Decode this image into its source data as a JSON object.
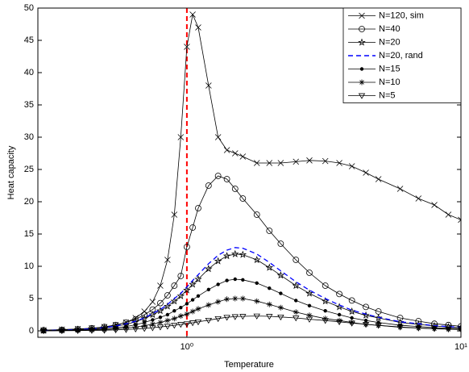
{
  "chart_data": {
    "type": "line",
    "x_label": "Temperature",
    "y_label": "Heat capacity",
    "x_scale": "log",
    "xlim": [
      0.286,
      10
    ],
    "ylim": [
      -1,
      50
    ],
    "xticks": [
      {
        "value": 1,
        "label": "10⁰"
      },
      {
        "value": 10,
        "label": "10¹"
      }
    ],
    "yticks": [
      0,
      5,
      10,
      15,
      20,
      25,
      30,
      35,
      40,
      45,
      50
    ],
    "legend": "upper right",
    "vline": {
      "x": 1,
      "color": "#ff0000"
    },
    "x": [
      0.3,
      0.35,
      0.4,
      0.45,
      0.5,
      0.55,
      0.6,
      0.65,
      0.7,
      0.75,
      0.8,
      0.85,
      0.9,
      0.95,
      1.0,
      1.05,
      1.1,
      1.2,
      1.3,
      1.4,
      1.5,
      1.6,
      1.8,
      2.0,
      2.2,
      2.5,
      2.8,
      3.2,
      3.6,
      4,
      4.5,
      5,
      6,
      7,
      8,
      9,
      10
    ],
    "series": [
      {
        "name": "N=120, sim",
        "color": "#000000",
        "marker": "x",
        "values": [
          0.1,
          0.2,
          0.3,
          0.4,
          0.6,
          0.9,
          1.3,
          2,
          3,
          4.5,
          7,
          11,
          18,
          30,
          44,
          49,
          47,
          38,
          30,
          28,
          27.5,
          27,
          26,
          26,
          26,
          26.2,
          26.4,
          26.3,
          26,
          25.5,
          24.5,
          23.5,
          22,
          20.5,
          19.5,
          18,
          17.2
        ]
      },
      {
        "name": "N=40",
        "color": "#000000",
        "marker": "o",
        "values": [
          0.1,
          0.15,
          0.25,
          0.4,
          0.6,
          0.9,
          1.3,
          1.8,
          2.5,
          3.3,
          4.3,
          5.5,
          7,
          8.5,
          13,
          16,
          19,
          22.5,
          24,
          23.5,
          22,
          20.5,
          18,
          15.5,
          13.5,
          11,
          9,
          7,
          5.7,
          4.7,
          3.7,
          3,
          2,
          1.5,
          1.1,
          0.9,
          0.7
        ]
      },
      {
        "name": "N=20",
        "color": "#000000",
        "marker": "star",
        "values": [
          0.05,
          0.1,
          0.2,
          0.3,
          0.45,
          0.7,
          1,
          1.4,
          1.9,
          2.5,
          3.1,
          3.8,
          4.6,
          5.4,
          6.3,
          7.2,
          8,
          9.6,
          10.8,
          11.6,
          11.9,
          11.8,
          11,
          9.8,
          8.6,
          7,
          5.8,
          4.6,
          3.7,
          3,
          2.4,
          2,
          1.3,
          1,
          0.75,
          0.6,
          0.5
        ]
      },
      {
        "name": "N=20, rand",
        "color": "#0000ff",
        "marker": "none",
        "dash": true,
        "values": [
          0.05,
          0.1,
          0.2,
          0.3,
          0.5,
          0.75,
          1.1,
          1.5,
          2,
          2.7,
          3.3,
          4.1,
          5,
          5.8,
          6.8,
          7.8,
          8.7,
          10.4,
          11.7,
          12.5,
          12.9,
          12.8,
          11.9,
          10.6,
          9.3,
          7.6,
          6.3,
          5,
          4,
          3.2,
          2.6,
          2.1,
          1.4,
          1.1,
          0.8,
          0.65,
          0.55
        ]
      },
      {
        "name": "N=15",
        "color": "#000000",
        "marker": "dot",
        "values": [
          0.03,
          0.07,
          0.13,
          0.2,
          0.3,
          0.47,
          0.67,
          0.94,
          1.3,
          1.7,
          2.1,
          2.5,
          3.1,
          3.6,
          4.2,
          4.8,
          5.4,
          6.4,
          7.2,
          7.8,
          8,
          7.9,
          7.4,
          6.6,
          5.8,
          4.7,
          3.9,
          3.1,
          2.5,
          2,
          1.6,
          1.3,
          0.87,
          0.67,
          0.5,
          0.4,
          0.34
        ]
      },
      {
        "name": "N=10",
        "color": "#000000",
        "marker": "asterisk",
        "values": [
          0.02,
          0.04,
          0.08,
          0.13,
          0.19,
          0.29,
          0.42,
          0.59,
          0.8,
          1.05,
          1.3,
          1.6,
          1.9,
          2.3,
          2.6,
          3,
          3.4,
          4,
          4.5,
          4.9,
          5,
          5,
          4.6,
          4.1,
          3.6,
          2.9,
          2.4,
          1.9,
          1.6,
          1.3,
          1,
          0.84,
          0.55,
          0.42,
          0.32,
          0.25,
          0.21
        ]
      },
      {
        "name": "N=5",
        "color": "#000000",
        "marker": "tri",
        "values": [
          0.01,
          0.02,
          0.04,
          0.06,
          0.09,
          0.14,
          0.2,
          0.28,
          0.37,
          0.48,
          0.6,
          0.72,
          0.86,
          1,
          1.1,
          1.25,
          1.4,
          1.65,
          1.9,
          2.1,
          2.2,
          2.25,
          2.3,
          2.25,
          2.15,
          2,
          1.8,
          1.6,
          1.4,
          1.2,
          1,
          0.85,
          0.6,
          0.45,
          0.35,
          0.28,
          0.23
        ]
      }
    ]
  }
}
